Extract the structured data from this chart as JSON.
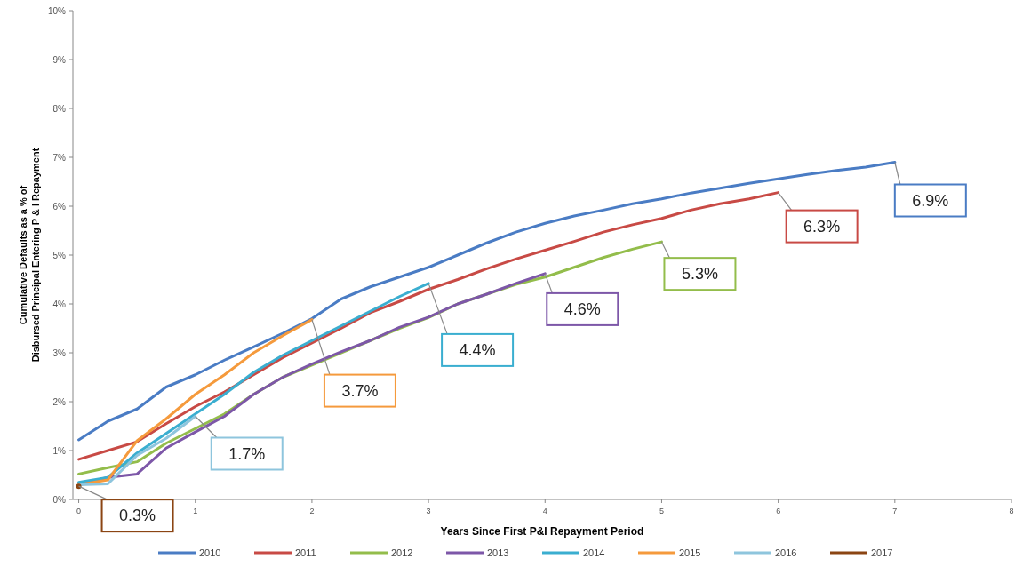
{
  "chart_data": {
    "type": "line",
    "xlabel": "Years Since First P&I Repayment Period",
    "ylabel": "Cumulative Defaults as a % of\nDisbursed Principal  Entering P & I Repayment",
    "xlim": [
      -0.05,
      8
    ],
    "xticks": [
      0,
      1,
      2,
      3,
      4,
      5,
      6,
      7,
      8
    ],
    "ylim": [
      0,
      10
    ],
    "yticks": [
      {
        "value": 0,
        "label": "0%"
      },
      {
        "value": 1,
        "label": "1%"
      },
      {
        "value": 2,
        "label": "2%"
      },
      {
        "value": 3,
        "label": "3%"
      },
      {
        "value": 4,
        "label": "4%"
      },
      {
        "value": 5,
        "label": "5%"
      },
      {
        "value": 6,
        "label": "6%"
      },
      {
        "value": 7,
        "label": "7%"
      },
      {
        "value": 8,
        "label": "8%"
      },
      {
        "value": 9,
        "label": "9%"
      },
      {
        "value": 10,
        "label": "10%"
      }
    ],
    "grid": false,
    "legend": "bottom",
    "line_style": "solid",
    "x": [
      0,
      0.25,
      0.5,
      0.75,
      1,
      1.25,
      1.5,
      1.75,
      2,
      2.25,
      2.5,
      2.75,
      3,
      3.25,
      3.5,
      3.75,
      4,
      4.25,
      4.5,
      4.75,
      5,
      5.25,
      5.5,
      5.75,
      6,
      6.25,
      6.5,
      6.75,
      7
    ],
    "series": [
      {
        "name": "2010",
        "color": "#4a7cc4",
        "values": [
          1.22,
          1.6,
          1.85,
          2.3,
          2.55,
          2.85,
          3.12,
          3.4,
          3.7,
          4.1,
          4.35,
          4.55,
          4.75,
          5.0,
          5.25,
          5.47,
          5.65,
          5.8,
          5.92,
          6.05,
          6.15,
          6.27,
          6.37,
          6.47,
          6.56,
          6.65,
          6.73,
          6.8,
          6.9
        ]
      },
      {
        "name": "2011",
        "color": "#c84a45",
        "values": [
          0.82,
          1.0,
          1.18,
          1.55,
          1.9,
          2.2,
          2.55,
          2.9,
          3.2,
          3.5,
          3.82,
          4.05,
          4.3,
          4.5,
          4.72,
          4.92,
          5.1,
          5.28,
          5.47,
          5.62,
          5.75,
          5.92,
          6.05,
          6.15,
          6.28,
          null,
          null,
          null,
          null
        ]
      },
      {
        "name": "2012",
        "color": "#93bd4b",
        "values": [
          0.52,
          0.65,
          0.77,
          1.15,
          1.45,
          1.75,
          2.15,
          2.5,
          2.75,
          3.0,
          3.25,
          3.5,
          3.72,
          4.0,
          4.2,
          4.4,
          4.55,
          4.75,
          4.95,
          5.12,
          5.27,
          null,
          null,
          null,
          null,
          null,
          null,
          null,
          null
        ]
      },
      {
        "name": "2013",
        "color": "#7d57a8",
        "values": [
          0.3,
          0.45,
          0.52,
          1.05,
          1.38,
          1.7,
          2.15,
          2.5,
          2.77,
          3.02,
          3.25,
          3.52,
          3.73,
          4.0,
          4.2,
          4.42,
          4.62,
          null,
          null,
          null,
          null,
          null,
          null,
          null,
          null,
          null,
          null,
          null,
          null
        ]
      },
      {
        "name": "2014",
        "color": "#3aaed0",
        "values": [
          0.35,
          0.45,
          0.95,
          1.35,
          1.75,
          2.15,
          2.6,
          2.95,
          3.25,
          3.55,
          3.85,
          4.15,
          4.42,
          null,
          null,
          null,
          null,
          null,
          null,
          null,
          null,
          null,
          null,
          null,
          null,
          null,
          null,
          null,
          null
        ]
      },
      {
        "name": "2015",
        "color": "#f59a3c",
        "values": [
          0.3,
          0.4,
          1.2,
          1.65,
          2.15,
          2.55,
          3.0,
          3.35,
          3.68,
          null,
          null,
          null,
          null,
          null,
          null,
          null,
          null,
          null,
          null,
          null,
          null,
          null,
          null,
          null,
          null,
          null,
          null,
          null,
          null
        ]
      },
      {
        "name": "2016",
        "color": "#8ec5dd",
        "values": [
          0.3,
          0.32,
          0.9,
          1.25,
          1.7,
          null,
          null,
          null,
          null,
          null,
          null,
          null,
          null,
          null,
          null,
          null,
          null,
          null,
          null,
          null,
          null,
          null,
          null,
          null,
          null,
          null,
          null,
          null,
          null
        ]
      },
      {
        "name": "2017",
        "color": "#8b4513",
        "marker": "circle",
        "values": [
          0.27,
          null,
          null,
          null,
          null,
          null,
          null,
          null,
          null,
          null,
          null,
          null,
          null,
          null,
          null,
          null,
          null,
          null,
          null,
          null,
          null,
          null,
          null,
          null,
          null,
          null,
          null,
          null,
          null
        ]
      }
    ],
    "annotations": [
      {
        "text": "6.9%",
        "x": 7,
        "y": 6.9
      },
      {
        "text": "6.3%",
        "x": 6,
        "y": 6.28
      },
      {
        "text": "5.3%",
        "x": 5,
        "y": 5.27
      },
      {
        "text": "4.6%",
        "x": 4,
        "y": 4.62
      },
      {
        "text": "4.4%",
        "x": 3,
        "y": 4.42
      },
      {
        "text": "3.7%",
        "x": 2,
        "y": 3.68
      },
      {
        "text": "1.7%",
        "x": 1,
        "y": 1.7
      },
      {
        "text": "0.3%",
        "x": 0,
        "y": 0.27
      }
    ]
  }
}
